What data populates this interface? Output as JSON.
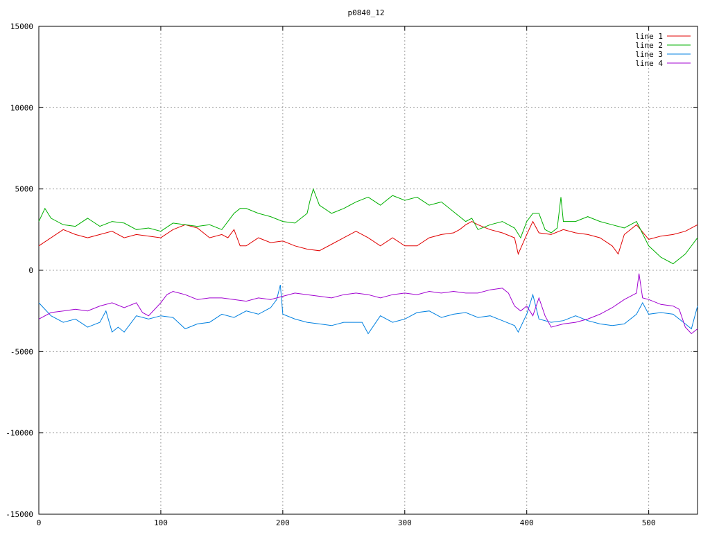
{
  "chart_data": {
    "type": "line",
    "title": "p0840_12",
    "xlabel": "",
    "ylabel": "",
    "xlim": [
      0,
      540
    ],
    "ylim": [
      -15000,
      15000
    ],
    "xticks": [
      0,
      100,
      200,
      300,
      400,
      500
    ],
    "yticks": [
      -15000,
      -10000,
      -5000,
      0,
      5000,
      10000,
      15000
    ],
    "grid": true,
    "legend": "top-right",
    "series": [
      {
        "name": "line 1",
        "color": "#e00000",
        "x": [
          0,
          10,
          20,
          30,
          40,
          50,
          60,
          70,
          80,
          90,
          100,
          110,
          120,
          130,
          140,
          150,
          155,
          160,
          165,
          170,
          180,
          190,
          200,
          210,
          220,
          230,
          240,
          250,
          260,
          270,
          280,
          290,
          300,
          310,
          320,
          330,
          340,
          345,
          350,
          355,
          360,
          370,
          380,
          390,
          393,
          400,
          405,
          410,
          420,
          430,
          440,
          450,
          460,
          470,
          475,
          480,
          490,
          500,
          510,
          520,
          530,
          540
        ],
        "values": [
          1500,
          2000,
          2500,
          2200,
          2000,
          2200,
          2400,
          2000,
          2200,
          2100,
          2000,
          2500,
          2800,
          2600,
          2000,
          2200,
          2000,
          2500,
          1500,
          1500,
          2000,
          1700,
          1800,
          1500,
          1300,
          1200,
          1600,
          2000,
          2400,
          2000,
          1500,
          2000,
          1500,
          1500,
          2000,
          2200,
          2300,
          2500,
          2800,
          3000,
          2800,
          2500,
          2300,
          2000,
          1000,
          2200,
          3000,
          2300,
          2200,
          2500,
          2300,
          2200,
          2000,
          1500,
          1000,
          2200,
          2800,
          1900,
          2100,
          2200,
          2400,
          2800
        ]
      },
      {
        "name": "line 2",
        "color": "#00b000",
        "x": [
          0,
          5,
          10,
          20,
          30,
          40,
          50,
          60,
          70,
          80,
          90,
          100,
          110,
          120,
          130,
          140,
          150,
          160,
          165,
          170,
          180,
          190,
          200,
          210,
          215,
          220,
          222,
          225,
          230,
          240,
          250,
          260,
          270,
          280,
          290,
          300,
          310,
          320,
          330,
          340,
          350,
          355,
          360,
          370,
          380,
          390,
          395,
          400,
          405,
          410,
          415,
          420,
          425,
          428,
          430,
          440,
          450,
          460,
          470,
          480,
          490,
          500,
          510,
          520,
          530,
          540
        ],
        "values": [
          3000,
          3800,
          3200,
          2800,
          2700,
          3200,
          2700,
          3000,
          2900,
          2500,
          2600,
          2400,
          2900,
          2800,
          2700,
          2800,
          2500,
          3500,
          3800,
          3800,
          3500,
          3300,
          3000,
          2900,
          3200,
          3500,
          4200,
          5000,
          4000,
          3500,
          3800,
          4200,
          4500,
          4000,
          4600,
          4300,
          4500,
          4000,
          4200,
          3600,
          3000,
          3200,
          2500,
          2800,
          3000,
          2600,
          2000,
          3000,
          3500,
          3500,
          2500,
          2300,
          2600,
          4500,
          3000,
          3000,
          3300,
          3000,
          2800,
          2600,
          3000,
          1500,
          800,
          400,
          1000,
          2000
        ]
      },
      {
        "name": "line 3",
        "color": "#0080e0",
        "x": [
          0,
          10,
          20,
          30,
          40,
          50,
          55,
          60,
          65,
          70,
          80,
          90,
          100,
          110,
          120,
          130,
          140,
          150,
          160,
          170,
          180,
          190,
          195,
          198,
          200,
          210,
          220,
          230,
          240,
          250,
          260,
          265,
          270,
          280,
          290,
          300,
          310,
          320,
          330,
          340,
          350,
          360,
          370,
          380,
          390,
          393,
          400,
          405,
          410,
          420,
          430,
          440,
          450,
          460,
          470,
          480,
          490,
          495,
          500,
          510,
          520,
          530,
          535,
          540
        ],
        "values": [
          -2000,
          -2800,
          -3200,
          -3000,
          -3500,
          -3200,
          -2500,
          -3800,
          -3500,
          -3800,
          -2800,
          -3000,
          -2800,
          -2900,
          -3600,
          -3300,
          -3200,
          -2700,
          -2900,
          -2500,
          -2700,
          -2300,
          -1800,
          -900,
          -2700,
          -3000,
          -3200,
          -3300,
          -3400,
          -3200,
          -3200,
          -3200,
          -3900,
          -2800,
          -3200,
          -3000,
          -2600,
          -2500,
          -2900,
          -2700,
          -2600,
          -2900,
          -2800,
          -3100,
          -3400,
          -3800,
          -2700,
          -1500,
          -3000,
          -3200,
          -3100,
          -2800,
          -3100,
          -3300,
          -3400,
          -3300,
          -2700,
          -2000,
          -2700,
          -2600,
          -2700,
          -3300,
          -3600,
          -2200
        ]
      },
      {
        "name": "line 4",
        "color": "#a000d0",
        "x": [
          0,
          10,
          20,
          30,
          40,
          50,
          60,
          70,
          80,
          85,
          90,
          100,
          105,
          110,
          120,
          130,
          140,
          150,
          160,
          170,
          180,
          190,
          200,
          210,
          220,
          230,
          240,
          250,
          260,
          270,
          280,
          290,
          300,
          310,
          320,
          330,
          340,
          350,
          360,
          370,
          380,
          385,
          390,
          395,
          400,
          405,
          410,
          415,
          420,
          430,
          440,
          450,
          460,
          470,
          480,
          490,
          492,
          495,
          500,
          510,
          520,
          525,
          530,
          535,
          540
        ],
        "values": [
          -3000,
          -2600,
          -2500,
          -2400,
          -2500,
          -2200,
          -2000,
          -2300,
          -2000,
          -2600,
          -2800,
          -2000,
          -1500,
          -1300,
          -1500,
          -1800,
          -1700,
          -1700,
          -1800,
          -1900,
          -1700,
          -1800,
          -1600,
          -1400,
          -1500,
          -1600,
          -1700,
          -1500,
          -1400,
          -1500,
          -1700,
          -1500,
          -1400,
          -1500,
          -1300,
          -1400,
          -1300,
          -1400,
          -1400,
          -1200,
          -1100,
          -1400,
          -2200,
          -2500,
          -2200,
          -2800,
          -1700,
          -2800,
          -3500,
          -3300,
          -3200,
          -3000,
          -2700,
          -2300,
          -1800,
          -1400,
          -200,
          -1700,
          -1800,
          -2100,
          -2200,
          -2400,
          -3500,
          -3900,
          -3600
        ]
      }
    ]
  }
}
